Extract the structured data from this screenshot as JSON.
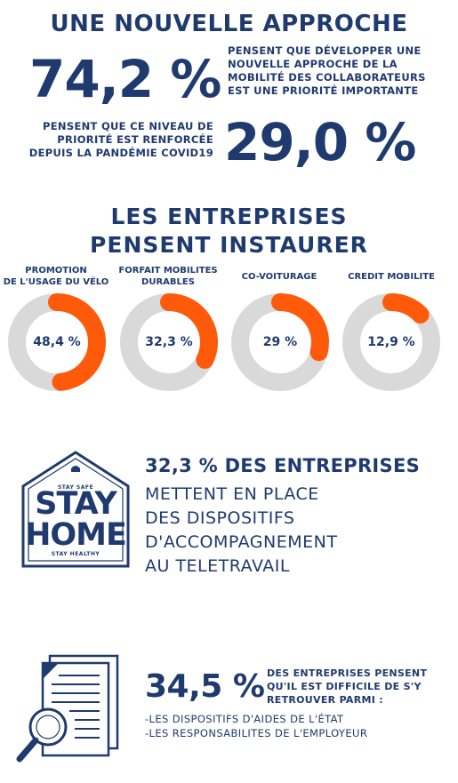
{
  "header": {
    "title": "UNE NOUVELLE APPROCHE"
  },
  "stat1": {
    "value": "74,2 %",
    "lines": [
      "PENSENT QUE DÉVELOPPER UNE",
      "NOUVELLE APPROCHE DE LA",
      "MOBILITÉ DES COLLABORATEURS",
      "EST UNE PRIORITÉ IMPORTANTE"
    ]
  },
  "stat2": {
    "value": "29,0 %",
    "lines": [
      "PENSENT QUE CE NIVEAU DE",
      "PRIORITÉ EST RENFORCÉE",
      "DEPUIS LA PANDÉMIE COVID19"
    ]
  },
  "section2": {
    "title_lines": [
      "LES ENTREPRISES",
      "PENSENT INSTAURER"
    ]
  },
  "chart_data": {
    "type": "pie",
    "categories": [
      [
        "PROMOTION",
        "DE L'USAGE DU VÉLO"
      ],
      [
        "FORFAIT MOBILITES",
        "DURABLES"
      ],
      [
        "CO-VOITURAGE"
      ],
      [
        "CREDIT MOBILITE"
      ]
    ],
    "values": [
      48.4,
      32.3,
      29,
      12.9
    ],
    "value_labels": [
      "48,4 %",
      "32,3 %",
      "29 %",
      "12,9 %"
    ],
    "colors": {
      "fill": "#ff5a0a",
      "track": "#d9d9d9"
    }
  },
  "stayhome": {
    "line1": "STAY SAFE",
    "line2": "STAY",
    "line3": "HOME",
    "line4": "STAY HEALTHY"
  },
  "stat3": {
    "headline": "32,3 % DES ENTREPRISES",
    "lines": [
      "METTENT EN PLACE",
      "DES DISPOSITIFS",
      "D'ACCOMPAGNEMENT",
      "AU TELETRAVAIL"
    ]
  },
  "stat4": {
    "value": "34,5 %",
    "lines": [
      "DES ENTREPRISES PENSENT",
      "QU'IL EST DIFFICILE DE S'Y",
      "RETROUVER PARMI :"
    ],
    "items": [
      "-LES DISPOSITIFS D'AIDES DE L'ÉTAT",
      "-LES RESPONSABILITES DE L'EMPLOYEUR"
    ]
  },
  "icons": {
    "house": "house-icon",
    "document_search": "document-magnifier-icon"
  }
}
